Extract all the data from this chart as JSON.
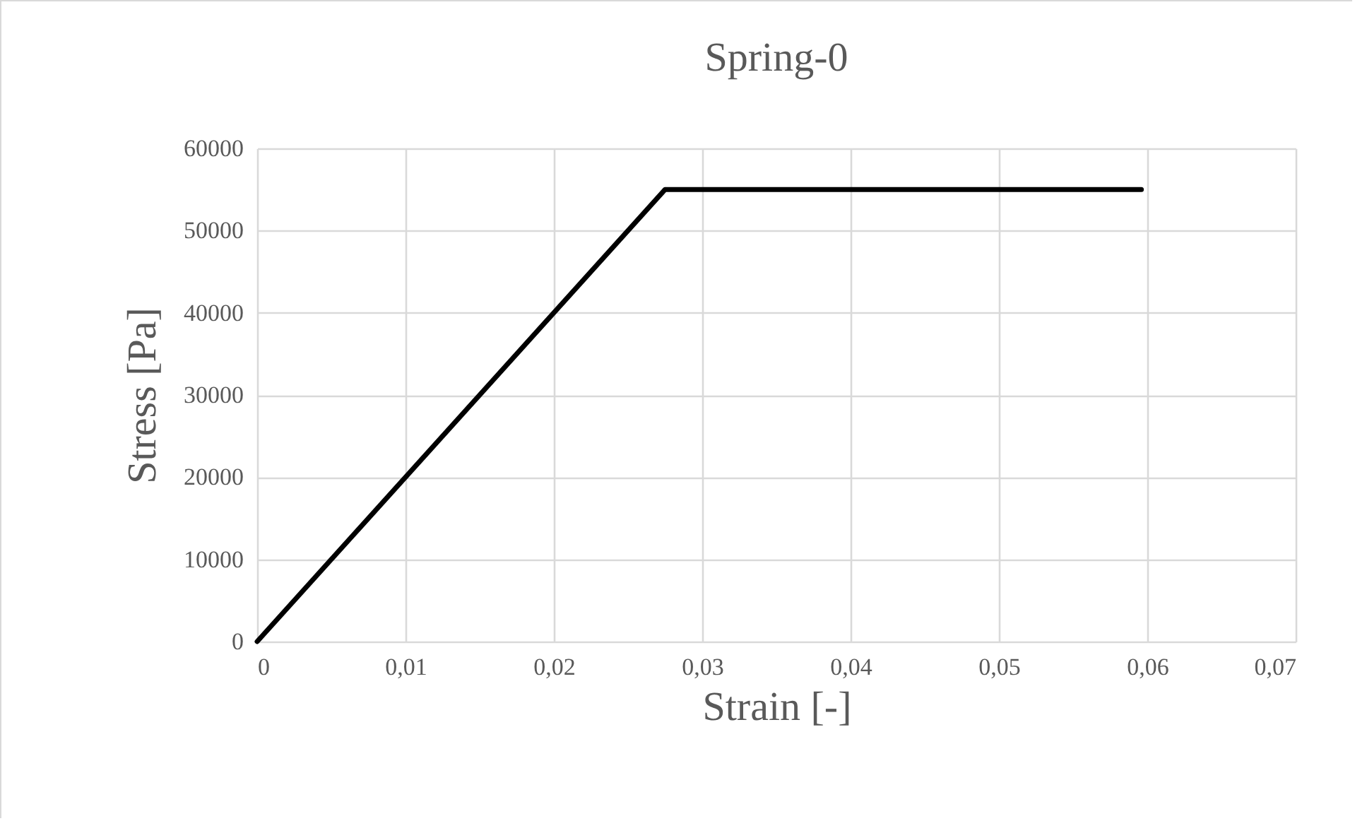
{
  "chart_data": {
    "type": "line",
    "title": "Spring-0",
    "xlabel": "Strain [-]",
    "ylabel": "Stress [Pa]",
    "x": [
      0,
      0.0275,
      0.0596
    ],
    "series": [
      {
        "color": "#000000",
        "values": [
          0,
          55000,
          55000
        ]
      }
    ],
    "xlim": [
      0,
      0.07
    ],
    "xticks": [
      0,
      {
        "value": 0.01,
        "label": "0,01"
      },
      {
        "value": 0.02,
        "label": "0,02"
      },
      {
        "value": 0.03,
        "label": "0,03"
      },
      {
        "value": 0.04,
        "label": "0,04"
      },
      {
        "value": 0.05,
        "label": "0,05"
      },
      {
        "value": 0.06,
        "label": "0,06"
      },
      {
        "value": 0.07,
        "label": "0,07"
      }
    ],
    "ylim": [
      0,
      60000
    ],
    "yticks": [
      0,
      10000,
      20000,
      30000,
      40000,
      50000,
      60000
    ],
    "grid": true,
    "marker": "none",
    "line_style": "solid"
  }
}
